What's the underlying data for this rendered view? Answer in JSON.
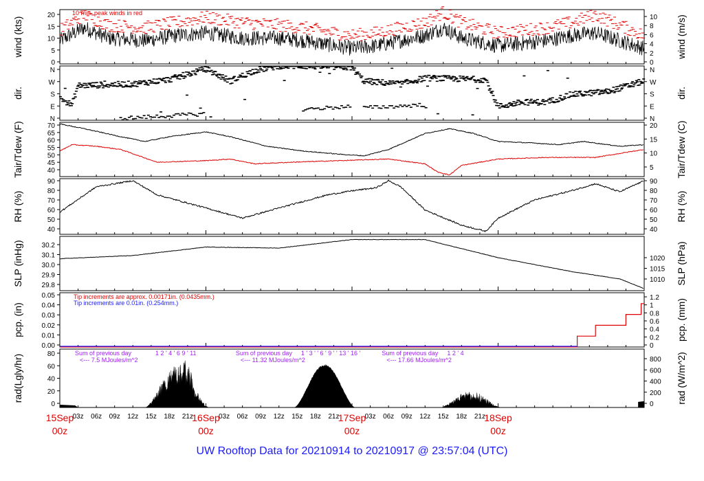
{
  "footer_title": "UW Rooftop Data for 20210914  to  20210917 @ 23:57:04  (UTC)",
  "colors": {
    "black": "#000000",
    "red": "#e00000",
    "blue": "#1a1aff",
    "purple": "#a020f0"
  },
  "chart_data": [
    {
      "id": "wind",
      "type": "line",
      "ylabel_left": "wind (kts)",
      "ylabel_right": "wind (m/s)",
      "left_ticks": [
        "0",
        "5",
        "10",
        "15",
        "20"
      ],
      "right_ticks": [
        "0",
        "2",
        "4",
        "6",
        "8",
        "10"
      ],
      "ylim": [
        0,
        21
      ],
      "annotation": "10 min. peak winds in red",
      "series": [
        {
          "role": "wind_kts",
          "color": "#000000",
          "keyframes": [
            [
              0,
              9
            ],
            [
              4,
              14
            ],
            [
              8,
              10
            ],
            [
              14,
              9
            ],
            [
              19,
              11
            ],
            [
              24,
              12
            ],
            [
              30,
              10
            ],
            [
              36,
              10
            ],
            [
              40,
              9
            ],
            [
              48,
              6
            ],
            [
              52,
              7
            ],
            [
              60,
              11
            ],
            [
              63,
              14
            ],
            [
              66,
              10
            ],
            [
              72,
              7
            ],
            [
              80,
              9
            ],
            [
              84,
              11
            ],
            [
              88,
              12
            ],
            [
              92,
              9
            ],
            [
              96,
              6
            ]
          ]
        },
        {
          "role": "peak_kts",
          "color": "#e00000",
          "keyframes": [
            [
              0,
              12
            ],
            [
              4,
              18
            ],
            [
              8,
              14
            ],
            [
              14,
              13
            ],
            [
              19,
              15
            ],
            [
              24,
              17
            ],
            [
              30,
              15
            ],
            [
              36,
              14
            ],
            [
              40,
              13
            ],
            [
              48,
              10
            ],
            [
              52,
              11
            ],
            [
              60,
              15
            ],
            [
              63,
              19
            ],
            [
              66,
              15
            ],
            [
              72,
              11
            ],
            [
              80,
              13
            ],
            [
              84,
              15
            ],
            [
              88,
              18
            ],
            [
              92,
              14
            ],
            [
              96,
              10
            ]
          ]
        }
      ]
    },
    {
      "id": "direction",
      "type": "scatter",
      "ylabel_left": "dir.",
      "ylabel_right": "dir.",
      "left_ticks": [
        "N",
        "E",
        "S",
        "W",
        "N"
      ],
      "right_ticks": [
        "N",
        "E",
        "S",
        "W",
        "N"
      ],
      "ylim": [
        0,
        360
      ],
      "segments": [
        [
          0,
          150
        ],
        [
          2,
          100
        ],
        [
          3,
          230
        ],
        [
          12,
          240
        ],
        [
          18,
          270
        ],
        [
          24,
          340
        ],
        [
          28,
          260
        ],
        [
          32,
          330
        ],
        [
          36,
          360
        ],
        [
          40,
          360
        ],
        [
          48,
          350
        ],
        [
          50,
          260
        ],
        [
          56,
          240
        ],
        [
          60,
          280
        ],
        [
          70,
          270
        ],
        [
          72,
          90
        ],
        [
          76,
          120
        ],
        [
          80,
          120
        ],
        [
          84,
          170
        ],
        [
          90,
          190
        ],
        [
          96,
          260
        ]
      ],
      "secondary": [
        [
          10,
          0,
          24,
          30
        ],
        [
          40,
          60,
          48,
          80
        ],
        [
          50,
          70,
          60,
          90
        ]
      ]
    },
    {
      "id": "temperature",
      "type": "line",
      "ylabel_left": "Tair/Tdew (F)",
      "ylabel_right": "Tair/Tdew (C)",
      "left_ticks": [
        "40",
        "45",
        "50",
        "55",
        "60",
        "65",
        "70"
      ],
      "right_ticks": [
        "5",
        "10",
        "15",
        "20"
      ],
      "ylim": [
        37,
        71
      ],
      "series": [
        {
          "role": "tair_f",
          "color": "#000000",
          "keyframes": [
            [
              0,
              70
            ],
            [
              4,
              67
            ],
            [
              10,
              62
            ],
            [
              14,
              59
            ],
            [
              18,
              62
            ],
            [
              24,
              65
            ],
            [
              28,
              62
            ],
            [
              34,
              56
            ],
            [
              40,
              53
            ],
            [
              46,
              51
            ],
            [
              50,
              50
            ],
            [
              54,
              54
            ],
            [
              60,
              64
            ],
            [
              64,
              67
            ],
            [
              68,
              64
            ],
            [
              72,
              59
            ],
            [
              78,
              58
            ],
            [
              82,
              57
            ],
            [
              86,
              59
            ],
            [
              92,
              56
            ],
            [
              96,
              57
            ]
          ]
        },
        {
          "role": "tdew_f",
          "color": "#e00000",
          "keyframes": [
            [
              0,
              53
            ],
            [
              2,
              57
            ],
            [
              6,
              56
            ],
            [
              10,
              54
            ],
            [
              16,
              46
            ],
            [
              24,
              47
            ],
            [
              28,
              48
            ],
            [
              32,
              45
            ],
            [
              38,
              46
            ],
            [
              46,
              47
            ],
            [
              54,
              48
            ],
            [
              60,
              45
            ],
            [
              62,
              40
            ],
            [
              64,
              38
            ],
            [
              66,
              44
            ],
            [
              72,
              48
            ],
            [
              80,
              49
            ],
            [
              88,
              49
            ],
            [
              96,
              54
            ]
          ]
        }
      ]
    },
    {
      "id": "rh",
      "type": "line",
      "ylabel_left": "RH (%)",
      "ylabel_right": "RH (%)",
      "left_ticks": [
        "40",
        "50",
        "60",
        "70",
        "80",
        "90"
      ],
      "right_ticks": [
        "40",
        "50",
        "60",
        "70",
        "80",
        "90"
      ],
      "ylim": [
        36,
        91
      ],
      "series": [
        {
          "role": "rh",
          "color": "#000000",
          "keyframes": [
            [
              0,
              58
            ],
            [
              6,
              83
            ],
            [
              12,
              89
            ],
            [
              16,
              75
            ],
            [
              24,
              62
            ],
            [
              30,
              52
            ],
            [
              36,
              62
            ],
            [
              44,
              75
            ],
            [
              48,
              79
            ],
            [
              52,
              82
            ],
            [
              54,
              89
            ],
            [
              56,
              83
            ],
            [
              60,
              60
            ],
            [
              66,
              45
            ],
            [
              70,
              39
            ],
            [
              72,
              52
            ],
            [
              78,
              70
            ],
            [
              84,
              79
            ],
            [
              88,
              86
            ],
            [
              92,
              78
            ],
            [
              96,
              89
            ]
          ]
        }
      ]
    },
    {
      "id": "pressure",
      "type": "line",
      "ylabel_left": "SLP (inHg)",
      "ylabel_right": "SLP (hPa)",
      "left_ticks": [
        "29.8",
        "29.9",
        "30.0",
        "30.1",
        "30.2"
      ],
      "right_ticks": [
        "1010",
        "1015",
        "1020"
      ],
      "ylim": [
        29.74,
        30.25
      ],
      "series": [
        {
          "role": "slp",
          "color": "#000000",
          "keyframes": [
            [
              0,
              30.04
            ],
            [
              12,
              30.07
            ],
            [
              24,
              30.15
            ],
            [
              36,
              30.14
            ],
            [
              48,
              30.22
            ],
            [
              60,
              30.22
            ],
            [
              72,
              30.05
            ],
            [
              84,
              29.92
            ],
            [
              92,
              29.85
            ],
            [
              96,
              29.76
            ]
          ]
        }
      ]
    },
    {
      "id": "precip",
      "type": "line",
      "ylabel_left": "pcp. (in)",
      "ylabel_right": "pcp. (mm)",
      "left_ticks": [
        "0.00",
        "0.01",
        "0.02",
        "0.03",
        "0.04",
        "0.05"
      ],
      "right_ticks": [
        "0",
        "0.2",
        "0.4",
        "0.6",
        "0.8",
        "1",
        "1.2"
      ],
      "ylim": [
        0,
        0.05
      ],
      "annotation_red": "Tip increments are approx. 0.00171in. (0.0435mm.)",
      "annotation_blue": "Tip increments are 0.01in. (0.254mm.)",
      "steps_red": [
        [
          0,
          0
        ],
        [
          85,
          0
        ],
        [
          85,
          0.01
        ],
        [
          88,
          0.01
        ],
        [
          88,
          0.02
        ],
        [
          93,
          0.02
        ],
        [
          93,
          0.03
        ],
        [
          95.5,
          0.03
        ],
        [
          95.5,
          0.04
        ],
        [
          96,
          0.04
        ]
      ]
    },
    {
      "id": "radiation",
      "type": "area",
      "ylabel_left": "rad(Lgly/hr)",
      "ylabel_right": "rad (W/m^2)",
      "left_ticks": [
        "0",
        "20",
        "40",
        "60",
        "80"
      ],
      "right_ticks": [
        "0",
        "200",
        "400",
        "600",
        "800"
      ],
      "ylim": [
        0,
        84
      ],
      "days": [
        {
          "start": 14,
          "end": 24.5,
          "peak": 60,
          "noise": 0.55,
          "sum_label": "Sum of previous day",
          "sum_value": "<--- 7.5 MJoules/m^2",
          "hour_labels": "1   2   '   4  ' 6   9  ' 11"
        },
        {
          "start": 38.5,
          "end": 48.5,
          "peak": 62,
          "noise": 0.05,
          "sum_label": "Sum of previous day",
          "sum_value": "<--- 11.32 MJoules/m^2",
          "hour_labels": "1 ' 3 ' ' 6 ' 9 ' ' 13 ' 16 '"
        },
        {
          "start": 62.5,
          "end": 72.5,
          "peak": 24,
          "noise": 0.6,
          "sum_label": "Sum of previous day",
          "sum_value": "<--- 17.66 MJoules/m^2",
          "hour_labels": "1   2   '   4"
        }
      ],
      "xticks_minor": [
        "03z",
        "06z",
        "09z",
        "12z",
        "15z",
        "18z",
        "21z",
        "03z",
        "06z",
        "09z",
        "12z",
        "15z",
        "18z",
        "21z",
        "03z",
        "06z",
        "09z",
        "12z",
        "15z",
        "18z",
        "21z"
      ],
      "xticks_major": [
        {
          "date": "15Sep",
          "hour": "00z"
        },
        {
          "date": "16Sep",
          "hour": "00z"
        },
        {
          "date": "17Sep",
          "hour": "00z"
        },
        {
          "date": "18Sep",
          "hour": "00z"
        }
      ]
    }
  ]
}
